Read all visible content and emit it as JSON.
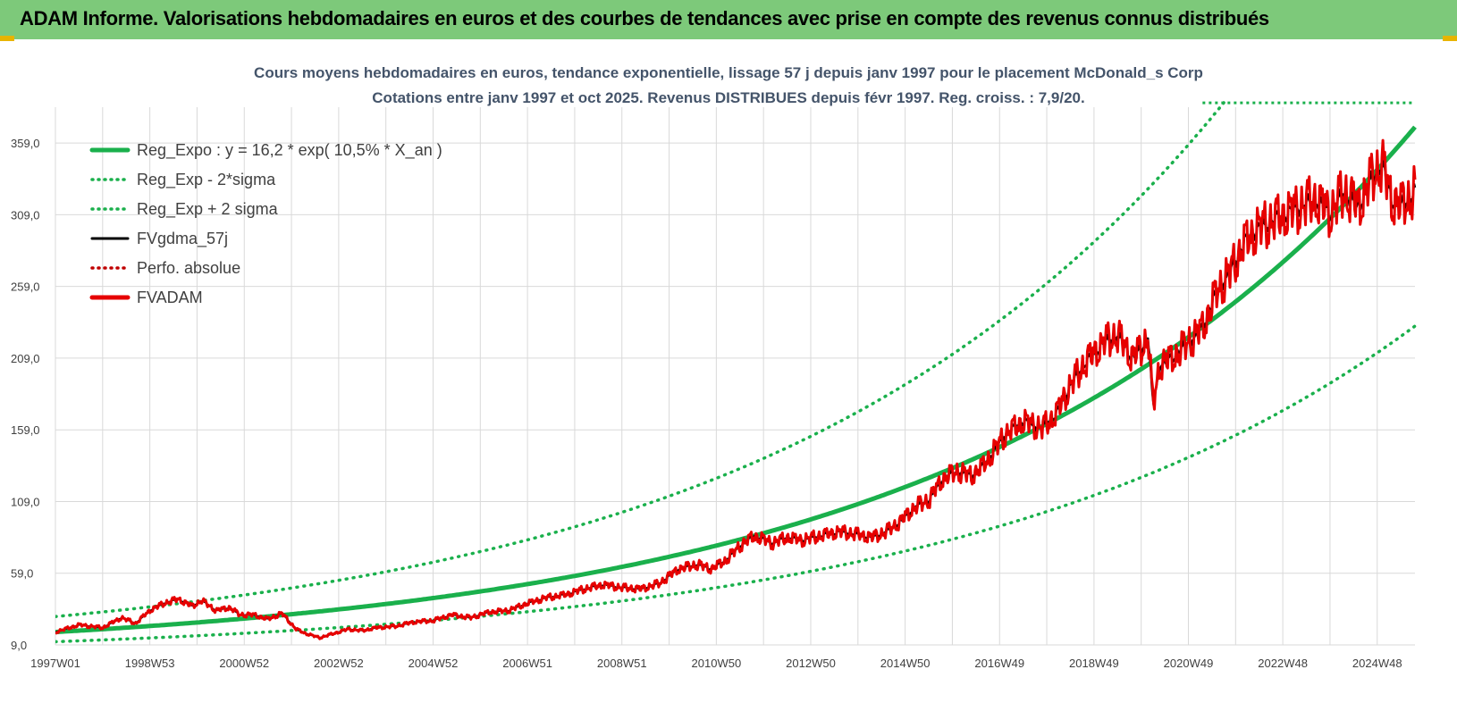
{
  "banner": {
    "title": "ADAM Informe. Valorisations hebdomadaires en euros et des courbes de tendances avec prise en compte des revenus connus distribués"
  },
  "colors": {
    "banner": "#7dc97a",
    "regression": "#1ab04c",
    "smoothed": "#000000",
    "price": "#e60000",
    "grid": "#d9d9d9"
  },
  "chart_data": {
    "type": "line",
    "title": "Cours moyens hebdomadaires en euros, tendance exponentielle, lissage 57 j depuis janv 1997 pour le placement McDonald_s Corp",
    "subtitle": "Cotations entre janv 1997 et oct 2025. Revenus DISTRIBUES depuis févr 1997. Reg. croiss. : 7,9/20.",
    "x_range": [
      1997.0,
      2025.8
    ],
    "ylim": [
      9.0,
      384.0
    ],
    "y_ticks": [
      "9,0",
      "59,0",
      "109,0",
      "159,0",
      "209,0",
      "259,0",
      "309,0",
      "359,0"
    ],
    "y_tick_values": [
      9,
      59,
      109,
      159,
      209,
      259,
      309,
      359
    ],
    "x_ticks": [
      "1997W01",
      "1998W53",
      "2000W52",
      "2002W52",
      "2004W52",
      "2006W51",
      "2008W51",
      "2010W50",
      "2012W50",
      "2014W50",
      "2016W49",
      "2018W49",
      "2020W49",
      "2022W48",
      "2024W48"
    ],
    "x_tick_values": [
      1997.0,
      1999.0,
      2001.0,
      2003.0,
      2005.0,
      2007.0,
      2009.0,
      2011.0,
      2013.0,
      2015.0,
      2017.0,
      2019.0,
      2021.0,
      2023.0,
      2025.0
    ],
    "grid": true,
    "legend_position": "top-left",
    "regression": {
      "a": 16.2,
      "b": 0.105,
      "sigma_factor": 1.6
    },
    "series": [
      {
        "name": "Reg_Expo : y = 16,2 * exp( 10,5% *  X_an )",
        "style": "thick-solid",
        "color": "#1ab04c",
        "generated": "reg"
      },
      {
        "name": "Reg_Exp - 2*sigma",
        "style": "dotted",
        "color": "#1ab04c",
        "generated": "reg_low"
      },
      {
        "name": "Reg_Exp + 2 sigma",
        "style": "dotted",
        "color": "#1ab04c",
        "generated": "reg_high"
      },
      {
        "name": "FVgdma_57j",
        "style": "solid",
        "color": "#000000",
        "generated": "smooth"
      },
      {
        "name": "Perfo. absolue",
        "style": "dotted",
        "color": "#c00000",
        "generated": "none"
      },
      {
        "name": "FVADAM",
        "style": "thick-solid",
        "color": "#e60000",
        "x": [
          1997.0,
          1997.5,
          1998.0,
          1998.4,
          1998.7,
          1999.0,
          1999.3,
          1999.6,
          1999.9,
          2000.1,
          2000.4,
          2000.7,
          2000.9,
          2001.2,
          2001.5,
          2001.8,
          2002.1,
          2002.3,
          2002.6,
          2002.8,
          2003.0,
          2003.2,
          2003.5,
          2003.8,
          2004.2,
          2004.6,
          2005.0,
          2005.4,
          2005.8,
          2006.2,
          2006.6,
          2007.0,
          2007.4,
          2007.8,
          2008.2,
          2008.6,
          2009.0,
          2009.4,
          2009.8,
          2010.2,
          2010.6,
          2010.9,
          2011.2,
          2011.5,
          2011.8,
          2012.2,
          2012.5,
          2012.8,
          2013.2,
          2013.6,
          2014.0,
          2014.3,
          2014.6,
          2014.9,
          2015.2,
          2015.5,
          2015.8,
          2016.1,
          2016.4,
          2016.6,
          2016.9,
          2017.1,
          2017.5,
          2017.9,
          2018.2,
          2018.5,
          2018.8,
          2019.2,
          2019.5,
          2019.8,
          2020.0,
          2020.15,
          2020.25,
          2020.4,
          2020.7,
          2021.0,
          2021.3,
          2021.6,
          2021.9,
          2022.2,
          2022.5,
          2022.8,
          2023.1,
          2023.4,
          2023.7,
          2024.0,
          2024.3,
          2024.6,
          2024.9,
          2025.1,
          2025.3,
          2025.5,
          2025.8
        ],
        "values": [
          18,
          23,
          21,
          28,
          24,
          33,
          38,
          41,
          36,
          40,
          33,
          35,
          30,
          30,
          27,
          31,
          20,
          17,
          14,
          16,
          18,
          20,
          19,
          21,
          22,
          25,
          26,
          30,
          28,
          32,
          33,
          38,
          42,
          44,
          48,
          51,
          49,
          48,
          52,
          62,
          65,
          62,
          68,
          78,
          85,
          80,
          84,
          82,
          85,
          88,
          86,
          84,
          88,
          95,
          105,
          110,
          125,
          130,
          127,
          132,
          145,
          155,
          165,
          160,
          170,
          190,
          205,
          220,
          225,
          210,
          215,
          225,
          175,
          205,
          210,
          220,
          230,
          255,
          270,
          290,
          300,
          305,
          310,
          315,
          320,
          310,
          325,
          315,
          335,
          345,
          320,
          315,
          325
        ]
      }
    ]
  },
  "dashed_marker": {
    "y_value": 387
  }
}
